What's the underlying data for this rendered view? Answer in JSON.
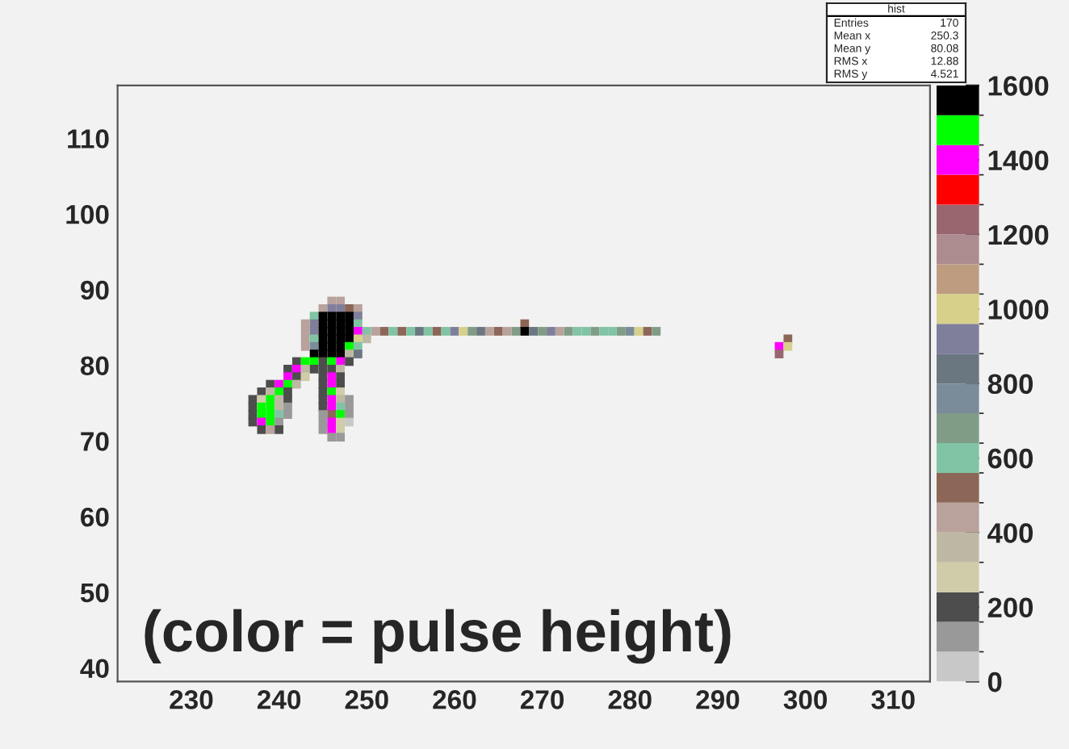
{
  "chart_data": {
    "type": "scatter",
    "marker": "square",
    "grid": false,
    "x": [
      246,
      247,
      245,
      246,
      247,
      248,
      249,
      244,
      245,
      246,
      247,
      248,
      249,
      243,
      244,
      245,
      246,
      247,
      248,
      249,
      268,
      243,
      244,
      245,
      246,
      247,
      248,
      249,
      250,
      251,
      252,
      253,
      254,
      255,
      256,
      257,
      258,
      259,
      260,
      261,
      262,
      263,
      264,
      265,
      266,
      267,
      268,
      269,
      270,
      271,
      272,
      273,
      274,
      275,
      276,
      277,
      278,
      279,
      280,
      281,
      282,
      283,
      243,
      244,
      245,
      246,
      247,
      248,
      249,
      250,
      298,
      243,
      244,
      245,
      246,
      247,
      248,
      249,
      297,
      298,
      244,
      245,
      246,
      247,
      248,
      249,
      297,
      242,
      243,
      244,
      245,
      246,
      247,
      248,
      241,
      242,
      243,
      244,
      245,
      246,
      247,
      241,
      242,
      243,
      245,
      246,
      247,
      239,
      240,
      241,
      242,
      245,
      246,
      247,
      238,
      239,
      240,
      241,
      245,
      246,
      247,
      237,
      238,
      239,
      240,
      241,
      245,
      246,
      247,
      248,
      237,
      238,
      239,
      240,
      241,
      245,
      246,
      247,
      248,
      237,
      238,
      239,
      240,
      241,
      245,
      246,
      247,
      248,
      237,
      238,
      239,
      240,
      245,
      246,
      247,
      248,
      238,
      239,
      240,
      245,
      246,
      247,
      246,
      247
    ],
    "values": [
      88.5,
      88.5,
      87.5,
      87.5,
      87.5,
      87.5,
      87.5,
      86.5,
      86.5,
      86.5,
      86.5,
      86.5,
      86.5,
      85.5,
      85.5,
      85.5,
      85.5,
      85.5,
      85.5,
      85.5,
      85.5,
      84.5,
      84.5,
      84.5,
      84.5,
      84.5,
      84.5,
      84.5,
      84.5,
      84.5,
      84.5,
      84.5,
      84.5,
      84.5,
      84.5,
      84.5,
      84.5,
      84.5,
      84.5,
      84.5,
      84.5,
      84.5,
      84.5,
      84.5,
      84.5,
      84.5,
      84.5,
      84.5,
      84.5,
      84.5,
      84.5,
      84.5,
      84.5,
      84.5,
      84.5,
      84.5,
      84.5,
      84.5,
      84.5,
      84.5,
      84.5,
      84.5,
      83.5,
      83.5,
      83.5,
      83.5,
      83.5,
      83.5,
      83.5,
      83.5,
      83.5,
      82.5,
      82.5,
      82.5,
      82.5,
      82.5,
      82.5,
      82.5,
      82.5,
      82.5,
      81.5,
      81.5,
      81.5,
      81.5,
      81.5,
      81.5,
      81.5,
      80.5,
      80.5,
      80.5,
      80.5,
      80.5,
      80.5,
      80.5,
      79.5,
      79.5,
      79.5,
      79.5,
      79.5,
      79.5,
      79.5,
      78.5,
      78.5,
      78.5,
      78.5,
      78.5,
      78.5,
      77.5,
      77.5,
      77.5,
      77.5,
      77.5,
      77.5,
      77.5,
      76.5,
      76.5,
      76.5,
      76.5,
      76.5,
      76.5,
      76.5,
      75.5,
      75.5,
      75.5,
      75.5,
      75.5,
      75.5,
      75.5,
      75.5,
      75.5,
      74.5,
      74.5,
      74.5,
      74.5,
      74.5,
      74.5,
      74.5,
      74.5,
      74.5,
      73.5,
      73.5,
      73.5,
      73.5,
      73.5,
      73.5,
      73.5,
      73.5,
      73.5,
      72.5,
      72.5,
      72.5,
      72.5,
      72.5,
      72.5,
      72.5,
      72.5,
      71.5,
      71.5,
      71.5,
      71.5,
      71.5,
      71.5,
      70.5,
      70.5
    ],
    "cvalues": [
      440,
      440,
      440,
      920,
      920,
      520,
      440,
      600,
      1560,
      1560,
      1560,
      1560,
      920,
      440,
      920,
      1560,
      1560,
      1560,
      1560,
      600,
      520,
      440,
      920,
      1560,
      1560,
      1560,
      1560,
      1400,
      600,
      440,
      520,
      600,
      520,
      600,
      840,
      600,
      520,
      600,
      920,
      1000,
      680,
      840,
      440,
      520,
      440,
      680,
      1560,
      840,
      680,
      920,
      440,
      680,
      600,
      600,
      680,
      600,
      600,
      680,
      760,
      1000,
      520,
      680,
      440,
      600,
      1560,
      1560,
      1560,
      1560,
      1000,
      360,
      520,
      440,
      760,
      1560,
      1560,
      1560,
      1480,
      600,
      1400,
      1000,
      1560,
      1560,
      1560,
      1560,
      360,
      840,
      1240,
      200,
      1480,
      1480,
      200,
      1480,
      1400,
      200,
      200,
      1400,
      360,
      200,
      200,
      200,
      360,
      1400,
      200,
      280,
      200,
      1400,
      200,
      200,
      1400,
      1480,
      360,
      200,
      1400,
      200,
      200,
      360,
      1480,
      200,
      200,
      1480,
      280,
      200,
      280,
      1480,
      360,
      200,
      200,
      1400,
      360,
      120,
      200,
      1480,
      1480,
      360,
      120,
      200,
      1400,
      600,
      120,
      200,
      1480,
      1480,
      600,
      120,
      120,
      520,
      1480,
      120,
      200,
      1400,
      1480,
      120,
      120,
      1400,
      280,
      40,
      200,
      440,
      200,
      120,
      1400,
      280,
      120,
      120
    ],
    "clim": [
      0,
      1600
    ],
    "cticks": [
      0,
      200,
      400,
      600,
      800,
      1000,
      1200,
      1400,
      1600
    ],
    "xlim": [
      221.6,
      314.2
    ],
    "ylim": [
      38.2,
      117
    ],
    "xticks": [
      230,
      240,
      250,
      260,
      270,
      280,
      290,
      300,
      310
    ],
    "yticks": [
      40,
      50,
      60,
      70,
      80,
      90,
      100,
      110
    ],
    "annotations": [
      "(color = pulse height)",
      "hist",
      "Entries 170",
      "Mean x 250.3",
      "Mean y 80.08",
      "RMS x 12.88",
      "RMS y 4.521"
    ]
  }
}
